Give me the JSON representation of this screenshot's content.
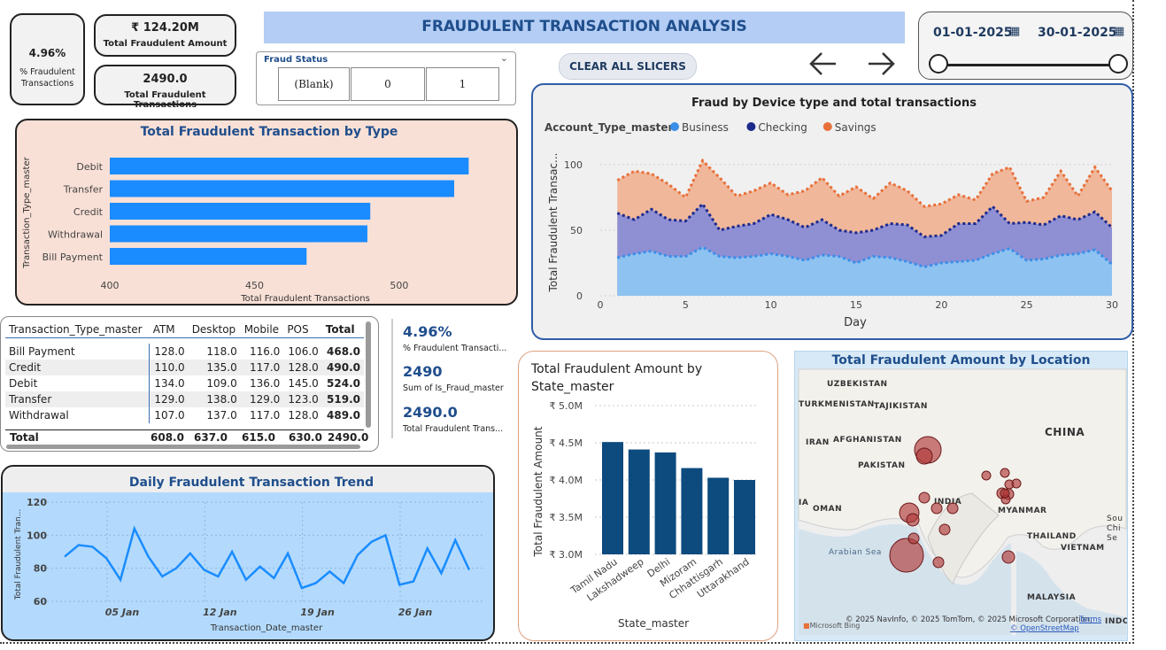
{
  "header": {
    "title": "FRAUDULENT TRANSACTION ANALYSIS"
  },
  "kpis": {
    "pct": {
      "value": "4.96%",
      "label": "% Fraudulent Transactions"
    },
    "amount": {
      "value": "₹ 124.20M",
      "label": "Total Fraudulent Amount"
    },
    "count": {
      "value": "2490.0",
      "label": "Total Fraudulent Transactions"
    }
  },
  "fraud_status": {
    "title": "Fraud Status",
    "options": [
      "(Blank)",
      "0",
      "1"
    ]
  },
  "clear_button": "CLEAR ALL SLICERS",
  "date_range": {
    "start": "01-01-2025",
    "end": "30-01-2025"
  },
  "bar_type": {
    "title": "Total Fraudulent Transaction by Type",
    "ylabel": "Transaction_Type_master",
    "xlabel": "Total Fraudulent Transactions",
    "xticks": [
      "400",
      "450",
      "500"
    ],
    "chart_data": {
      "type": "bar",
      "categories": [
        "Debit",
        "Transfer",
        "Credit",
        "Withdrawal",
        "Bill Payment"
      ],
      "values": [
        524,
        519,
        490,
        489,
        468
      ],
      "xlim": [
        400,
        530
      ],
      "title": "Total Fraudulent Transaction by Type",
      "xlabel": "Total Fraudulent Transactions",
      "ylabel": "Transaction_Type_master"
    }
  },
  "matrix": {
    "headers": [
      "Transaction_Type_master",
      "ATM",
      "Desktop",
      "Mobile",
      "POS",
      "Total"
    ],
    "rows": [
      [
        "Bill Payment",
        "128.0",
        "118.0",
        "116.0",
        "106.0",
        "468.0"
      ],
      [
        "Credit",
        "110.0",
        "135.0",
        "117.0",
        "128.0",
        "490.0"
      ],
      [
        "Debit",
        "134.0",
        "109.0",
        "136.0",
        "145.0",
        "524.0"
      ],
      [
        "Transfer",
        "129.0",
        "138.0",
        "129.0",
        "123.0",
        "519.0"
      ],
      [
        "Withdrawal",
        "107.0",
        "137.0",
        "117.0",
        "128.0",
        "489.0"
      ]
    ],
    "total": [
      "Total",
      "608.0",
      "637.0",
      "615.0",
      "630.0",
      "2490.0"
    ]
  },
  "cards": [
    {
      "value": "4.96%",
      "label": "% Fraudulent Transacti..."
    },
    {
      "value": "2490",
      "label": "Sum of Is_Fraud_master"
    },
    {
      "value": "2490.0",
      "label": "Total Fraudulent Trans..."
    }
  ],
  "area": {
    "title": "Fraud by Device type and total transactions",
    "legend_title": "Account_Type_master",
    "legend": [
      {
        "name": "Business",
        "color": "#3b8ee8"
      },
      {
        "name": "Checking",
        "color": "#1c2a8c"
      },
      {
        "name": "Savings",
        "color": "#e8703b"
      }
    ],
    "ylabel": "Total Fraudulent Transac...",
    "xlabel": "Day",
    "xticks": [
      "0",
      "5",
      "10",
      "15",
      "20",
      "25",
      "30"
    ],
    "yticks": [
      "0",
      "50",
      "100"
    ],
    "chart_data": {
      "type": "area",
      "x": [
        1,
        2,
        3,
        4,
        5,
        6,
        7,
        8,
        9,
        10,
        11,
        12,
        13,
        14,
        15,
        16,
        17,
        18,
        19,
        20,
        21,
        22,
        23,
        24,
        25,
        26,
        27,
        28,
        29,
        30
      ],
      "xlim": [
        0,
        30
      ],
      "ylim": [
        0,
        110
      ],
      "series": [
        {
          "name": "Business",
          "values": [
            29,
            32,
            34,
            30,
            30,
            37,
            30,
            29,
            30,
            32,
            30,
            27,
            31,
            30,
            25,
            30,
            29,
            26,
            22,
            25,
            26,
            27,
            32,
            36,
            27,
            28,
            31,
            32,
            35,
            24
          ]
        },
        {
          "name": "Checking",
          "values": [
            63,
            58,
            66,
            58,
            57,
            70,
            50,
            53,
            55,
            62,
            58,
            52,
            58,
            50,
            48,
            50,
            55,
            54,
            45,
            46,
            55,
            55,
            68,
            55,
            56,
            54,
            61,
            58,
            64,
            52
          ]
        },
        {
          "name": "Savings",
          "values": [
            88,
            95,
            93,
            85,
            75,
            103,
            90,
            76,
            80,
            86,
            77,
            80,
            90,
            76,
            83,
            74,
            86,
            80,
            68,
            70,
            77,
            73,
            93,
            98,
            72,
            75,
            95,
            76,
            98,
            80
          ]
        }
      ],
      "title": "Fraud by Device type and total transactions",
      "xlabel": "Day",
      "ylabel": "Total Fraudulent Transac..."
    }
  },
  "trend": {
    "title": "Daily Fraudulent Transaction Trend",
    "ylabel": "Total Fraudulent Tran...",
    "xlabel": "Transaction_Date_master",
    "xticks": [
      "05 Jan",
      "12 Jan",
      "19 Jan",
      "26 Jan"
    ],
    "yticks": [
      "60",
      "80",
      "100",
      "120"
    ],
    "chart_data": {
      "type": "line",
      "x": [
        1,
        2,
        3,
        4,
        5,
        6,
        7,
        8,
        9,
        10,
        11,
        12,
        13,
        14,
        15,
        16,
        17,
        18,
        19,
        20,
        21,
        22,
        23,
        24,
        25,
        26,
        27,
        28,
        29,
        30
      ],
      "values": [
        87,
        94,
        93,
        86,
        73,
        104,
        87,
        75,
        80,
        89,
        79,
        75,
        90,
        73,
        81,
        74,
        89,
        68,
        71,
        78,
        71,
        88,
        96,
        100,
        70,
        72,
        92,
        77,
        97,
        79
      ],
      "ylim": [
        60,
        120
      ],
      "title": "Daily Fraudulent Transaction Trend",
      "xlabel": "Transaction_Date_master",
      "ylabel": "Total Fraudulent Tran..."
    }
  },
  "state": {
    "title": "Total Fraudulent Amount by State_master",
    "ylabel": "Total Fraudulent Amount",
    "xlabel": "State_master",
    "yticks": [
      "₹ 3.0M",
      "₹ 3.5M",
      "₹ 4.0M",
      "₹ 4.5M",
      "₹ 5.0M"
    ],
    "color": "#0d4a7e",
    "chart_data": {
      "type": "bar",
      "categories": [
        "Tamil Nadu",
        "Lakshadweep",
        "Delhi",
        "Mizoram",
        "Chhattisgarh",
        "Uttarakhand"
      ],
      "values": [
        4.51,
        4.41,
        4.37,
        4.16,
        4.03,
        4.0
      ],
      "ylim": [
        3.0,
        5.0
      ],
      "units": "₹ M",
      "title": "Total Fraudulent Amount by State_master",
      "xlabel": "State_master",
      "ylabel": "Total Fraudulent Amount"
    }
  },
  "map": {
    "title": "Total Fraudulent Amount by Location",
    "labels": [
      "UZBEKISTAN",
      "TURKMENISTAN",
      "TAJIKISTAN",
      "CHINA",
      "IRAN",
      "AFGHANISTAN",
      "PAKISTAN",
      "INDIA",
      "OMAN",
      "MYANMAR",
      "THAILAND",
      "VIETNAM",
      "Arabian Sea",
      "MALAYSIA",
      "IA",
      "Sou Chi Se",
      "INDO"
    ],
    "credit": "© 2025 NavInfo, © 2025 TomTom, © 2025 Microsoft Corporation,",
    "terms": "Terms",
    "osm": "© OpenStreetMap",
    "brand": "Microsoft Bing"
  }
}
